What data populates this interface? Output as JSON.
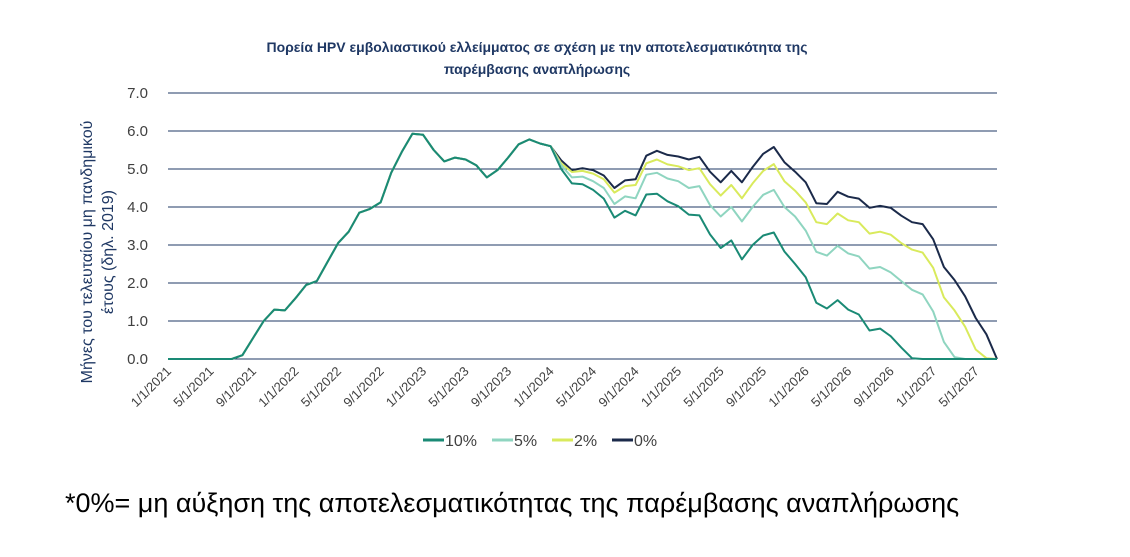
{
  "chart_data": {
    "type": "line",
    "title": [
      "Πορεία HPV εμβολιαστικού ελλείμματος σε σχέση με την αποτελεσματικότητα της",
      "παρέμβασης αναπλήρωσης"
    ],
    "xlabel": "",
    "ylabel": [
      "Μήνες του τελευταίου μη πανδημικού",
      "έτους (δηλ. 2019)"
    ],
    "ylim": [
      0,
      7
    ],
    "yticks": [
      "0.0",
      "1.0",
      "2.0",
      "3.0",
      "4.0",
      "5.0",
      "6.0",
      "7.0"
    ],
    "grid": true,
    "legend_position": "bottom",
    "x_labels": [
      "1/1/2021",
      "5/1/2021",
      "9/1/2021",
      "1/1/2022",
      "5/1/2022",
      "9/1/2022",
      "1/1/2023",
      "5/1/2023",
      "9/1/2023",
      "1/1/2024",
      "5/1/2024",
      "9/1/2024",
      "1/1/2025",
      "5/1/2025",
      "9/1/2025",
      "1/1/2026",
      "5/1/2026",
      "9/1/2026",
      "1/1/2027",
      "5/1/2027"
    ],
    "months_per_label": 4,
    "series": [
      {
        "name": "0%",
        "color": "#1b2a4a",
        "values": [
          0,
          0,
          0,
          0,
          0,
          0,
          0,
          0.1,
          0.55,
          1.0,
          1.3,
          1.28,
          1.6,
          1.95,
          2.05,
          2.55,
          3.05,
          3.35,
          3.85,
          3.95,
          4.12,
          4.9,
          5.45,
          5.93,
          5.9,
          5.5,
          5.2,
          5.3,
          5.25,
          5.1,
          4.78,
          4.97,
          5.3,
          5.65,
          5.78,
          5.67,
          5.6,
          5.23,
          4.97,
          5.02,
          4.97,
          4.83,
          4.5,
          4.7,
          4.73,
          5.35,
          5.48,
          5.37,
          5.33,
          5.25,
          5.32,
          4.93,
          4.65,
          4.95,
          4.65,
          5.05,
          5.4,
          5.58,
          5.18,
          4.93,
          4.65,
          4.1,
          4.08,
          4.4,
          4.27,
          4.22,
          3.98,
          4.03,
          3.98,
          3.77,
          3.6,
          3.55,
          3.15,
          2.42,
          2.08,
          1.65,
          1.08,
          0.65,
          0.0
        ]
      },
      {
        "name": "2%",
        "color": "#d9ea5c",
        "values": [
          0,
          0,
          0,
          0,
          0,
          0,
          0,
          0.1,
          0.55,
          1.0,
          1.3,
          1.28,
          1.6,
          1.95,
          2.05,
          2.55,
          3.05,
          3.35,
          3.85,
          3.95,
          4.12,
          4.9,
          5.45,
          5.93,
          5.9,
          5.5,
          5.2,
          5.3,
          5.25,
          5.1,
          4.78,
          4.97,
          5.3,
          5.65,
          5.78,
          5.67,
          5.6,
          5.15,
          4.92,
          4.95,
          4.88,
          4.73,
          4.38,
          4.55,
          4.58,
          5.15,
          5.25,
          5.12,
          5.07,
          4.97,
          5.02,
          4.6,
          4.3,
          4.58,
          4.23,
          4.62,
          4.95,
          5.13,
          4.68,
          4.43,
          4.12,
          3.6,
          3.55,
          3.83,
          3.65,
          3.6,
          3.3,
          3.35,
          3.27,
          3.05,
          2.88,
          2.8,
          2.4,
          1.62,
          1.28,
          0.85,
          0.25,
          0.02,
          0.0
        ]
      },
      {
        "name": "5%",
        "color": "#8fd5c0",
        "values": [
          0,
          0,
          0,
          0,
          0,
          0,
          0,
          0.1,
          0.55,
          1.0,
          1.3,
          1.28,
          1.6,
          1.95,
          2.05,
          2.55,
          3.05,
          3.35,
          3.85,
          3.95,
          4.12,
          4.9,
          5.45,
          5.93,
          5.9,
          5.5,
          5.2,
          5.3,
          5.25,
          5.1,
          4.78,
          4.97,
          5.3,
          5.65,
          5.78,
          5.67,
          5.6,
          5.1,
          4.78,
          4.8,
          4.68,
          4.5,
          4.08,
          4.28,
          4.23,
          4.85,
          4.9,
          4.75,
          4.68,
          4.5,
          4.55,
          4.05,
          3.75,
          4.0,
          3.62,
          4.0,
          4.32,
          4.45,
          4.0,
          3.75,
          3.38,
          2.82,
          2.72,
          2.98,
          2.78,
          2.7,
          2.38,
          2.42,
          2.28,
          2.05,
          1.82,
          1.7,
          1.25,
          0.45,
          0.05,
          0.0,
          0.0,
          0.0,
          0.0
        ]
      },
      {
        "name": "10%",
        "color": "#1a8a75",
        "values": [
          0,
          0,
          0,
          0,
          0,
          0,
          0,
          0.1,
          0.55,
          1.0,
          1.3,
          1.28,
          1.6,
          1.95,
          2.05,
          2.55,
          3.05,
          3.35,
          3.85,
          3.95,
          4.12,
          4.9,
          5.45,
          5.93,
          5.9,
          5.5,
          5.2,
          5.3,
          5.25,
          5.1,
          4.78,
          4.97,
          5.3,
          5.65,
          5.78,
          5.67,
          5.6,
          5.0,
          4.62,
          4.6,
          4.45,
          4.22,
          3.72,
          3.9,
          3.78,
          4.33,
          4.35,
          4.15,
          4.02,
          3.8,
          3.78,
          3.28,
          2.92,
          3.12,
          2.62,
          3.0,
          3.25,
          3.33,
          2.83,
          2.5,
          2.15,
          1.48,
          1.33,
          1.55,
          1.3,
          1.17,
          0.75,
          0.8,
          0.6,
          0.3,
          0.02,
          0.0,
          0.0,
          0.0,
          0.0,
          0.0,
          0.0,
          0.0,
          0.0
        ]
      }
    ],
    "legend_order": [
      "10%",
      "5%",
      "2%",
      "0%"
    ]
  },
  "footnote": "*0%= μη αύξηση της αποτελεσματικότητας της παρέμβασης αναπλήρωσης"
}
